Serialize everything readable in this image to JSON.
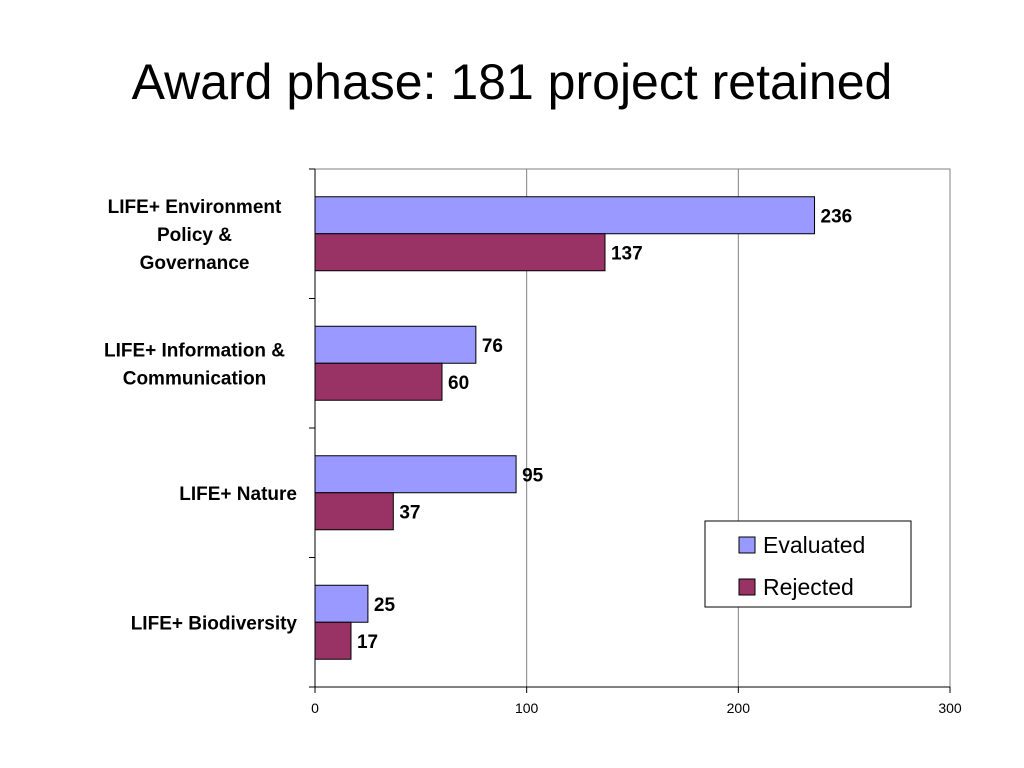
{
  "title": "Award phase: 181 project retained",
  "chart_data": {
    "type": "bar",
    "orientation": "horizontal",
    "title": "Award phase: 181 project retained",
    "categories": [
      [
        "LIFE+ Environment",
        "Policy &",
        "Governance"
      ],
      [
        "LIFE+ Information &",
        "Communication"
      ],
      [
        "LIFE+ Nature"
      ],
      [
        "LIFE+ Biodiversity"
      ]
    ],
    "series": [
      {
        "name": "Evaluated",
        "color": "#9999ff",
        "values": [
          236,
          76,
          95,
          25
        ]
      },
      {
        "name": "Rejected",
        "color": "#993366",
        "values": [
          137,
          60,
          37,
          17
        ]
      }
    ],
    "xlim": [
      0,
      300
    ],
    "xticks": [
      0,
      100,
      200,
      300
    ],
    "grid": true,
    "legend": "bottom-right"
  }
}
